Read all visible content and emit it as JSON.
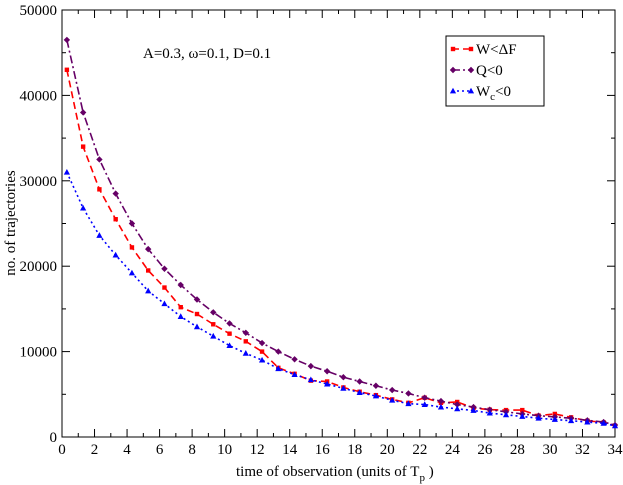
{
  "chart_data": {
    "type": "line",
    "title": "",
    "annotation": "A=0.3, ω=0.1, D=0.1",
    "xlabel": {
      "before": "time of observation (units of  T",
      "sub": "p",
      "after": " )"
    },
    "ylabel": "no. of trajectories",
    "xlim": [
      0,
      34
    ],
    "ylim": [
      0,
      50000
    ],
    "xticks": [
      0,
      2,
      4,
      6,
      8,
      10,
      12,
      14,
      16,
      18,
      20,
      22,
      24,
      26,
      28,
      30,
      32,
      34
    ],
    "yticks": [
      0,
      10000,
      20000,
      30000,
      40000,
      50000
    ],
    "x": [
      0.3,
      1.3,
      2.3,
      3.3,
      4.3,
      5.3,
      6.3,
      7.3,
      8.3,
      9.3,
      10.3,
      11.3,
      12.3,
      13.3,
      14.3,
      15.3,
      16.3,
      17.3,
      18.3,
      19.3,
      20.3,
      21.3,
      22.3,
      23.3,
      24.3,
      25.3,
      26.3,
      27.3,
      28.3,
      29.3,
      30.3,
      31.3,
      32.3,
      33.3,
      34.0
    ],
    "series": [
      {
        "name": "W<ΔF",
        "legend": {
          "main": "W<ΔF",
          "sub": "",
          "tail": ""
        },
        "color": "#ff0000",
        "dash": "7,4",
        "marker": "square",
        "values": [
          43000,
          34000,
          29000,
          25500,
          22200,
          19500,
          17500,
          15200,
          14400,
          13200,
          12100,
          11200,
          10000,
          8100,
          7400,
          6600,
          6500,
          5800,
          5300,
          4900,
          4400,
          4000,
          4600,
          4000,
          4100,
          3400,
          3200,
          3150,
          3150,
          2500,
          2700,
          2300,
          1900,
          1700,
          1300
        ]
      },
      {
        "name": "Q<0",
        "legend": {
          "main": "Q<0",
          "sub": "",
          "tail": ""
        },
        "color": "#660066",
        "dash": "8,3,2,3",
        "marker": "diamond",
        "values": [
          46500,
          38000,
          32500,
          28500,
          25000,
          22000,
          19700,
          17800,
          16100,
          14600,
          13300,
          12200,
          11000,
          10000,
          9100,
          8300,
          7700,
          7000,
          6500,
          6000,
          5500,
          5100,
          4600,
          4200,
          3800,
          3500,
          3200,
          2950,
          2700,
          2500,
          2350,
          2200,
          1950,
          1750,
          1400
        ]
      },
      {
        "name": "Wc<0",
        "legend": {
          "main": "W",
          "sub": "c",
          "tail": "<0"
        },
        "color": "#0000ff",
        "dash": "2,3",
        "marker": "triangle",
        "values": [
          31000,
          26800,
          23600,
          21300,
          19200,
          17100,
          15600,
          14100,
          12900,
          11800,
          10700,
          9800,
          9000,
          8000,
          7300,
          6700,
          6200,
          5700,
          5200,
          4800,
          4300,
          3900,
          3800,
          3500,
          3300,
          3100,
          2800,
          2600,
          2400,
          2200,
          2050,
          1900,
          1750,
          1600,
          1300
        ]
      }
    ],
    "legend_position": "top-right",
    "grid": false
  }
}
